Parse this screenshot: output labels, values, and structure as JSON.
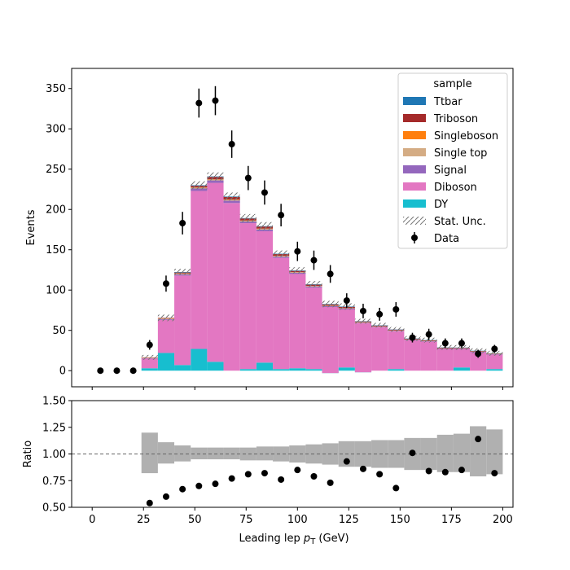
{
  "chart_data": [
    {
      "type": "bar",
      "stacked": true,
      "panel": "main",
      "ylabel": "Events",
      "xlim": [
        -10,
        205
      ],
      "ylim": [
        -20,
        375
      ],
      "yticks": [
        0,
        50,
        100,
        150,
        200,
        250,
        300,
        350
      ],
      "bin_edges": [
        24,
        32,
        40,
        48,
        56,
        64,
        72,
        80,
        88,
        96,
        104,
        112,
        120,
        128,
        136,
        144,
        152,
        160,
        168,
        176,
        184,
        192,
        200
      ],
      "series": [
        {
          "name": "DY",
          "color": "#17becf",
          "values": [
            3,
            22,
            7,
            27,
            11,
            0,
            2,
            10,
            2,
            3,
            2,
            -3,
            4,
            -2,
            0,
            2,
            0,
            0,
            0,
            4,
            0,
            2
          ]
        },
        {
          "name": "Diboson",
          "color": "#e377c2",
          "values": [
            12,
            41,
            111,
            196,
            222,
            208,
            181,
            163,
            138,
            117,
            101,
            82,
            72,
            61,
            54,
            47,
            38,
            36,
            27,
            23,
            23,
            18
          ]
        },
        {
          "name": "Signal",
          "color": "#9467bd",
          "values": [
            0.5,
            1,
            1.5,
            3,
            3,
            3,
            2,
            2,
            1.5,
            1.5,
            1.5,
            1,
            1,
            0.5,
            0.5,
            0.5,
            0.5,
            0.5,
            0.5,
            0.5,
            0.5,
            0.5
          ]
        },
        {
          "name": "Single top",
          "color": "#d4ac84",
          "values": [
            0.3,
            0.5,
            0.8,
            1,
            1,
            1,
            1,
            1,
            0.8,
            0.6,
            0.5,
            0.5,
            0.4,
            0.3,
            0.3,
            0.3,
            0.2,
            0.2,
            0.2,
            0.2,
            0.2,
            0.2
          ]
        },
        {
          "name": "Singleboson",
          "color": "#ff7f0e",
          "values": [
            0.2,
            0.3,
            0.3,
            0.4,
            0.4,
            0.4,
            0.3,
            0.3,
            0.3,
            0.2,
            0.2,
            0.2,
            0.2,
            0.2,
            0.1,
            0.1,
            0.1,
            0.1,
            0.1,
            0.1,
            0.1,
            0.1
          ]
        },
        {
          "name": "Triboson",
          "color": "#a52a2a",
          "values": [
            0.5,
            0.7,
            1.2,
            2,
            3,
            3,
            2.5,
            2.5,
            2,
            1.5,
            1.5,
            1.5,
            1.5,
            1,
            1,
            1,
            0.8,
            0.8,
            0.7,
            0.6,
            0.6,
            0.5
          ]
        },
        {
          "name": "Ttbar",
          "color": "#1f77b4",
          "values": [
            0,
            0,
            0.6,
            0.6,
            0.6,
            0.6,
            0.5,
            0.5,
            0.5,
            0.5,
            0.5,
            0.5,
            0.5,
            0.4,
            0.4,
            0.3,
            0.3,
            0.3,
            0.3,
            0.3,
            0.3,
            0.3
          ]
        }
      ],
      "stat_unc_halfwidth": [
        3,
        4,
        4,
        5,
        5,
        5,
        5,
        5,
        4,
        4,
        4,
        4,
        4,
        3,
        3,
        3,
        3,
        3,
        3,
        3,
        3,
        3
      ],
      "stat_unc_label": "Stat. Unc.",
      "data": {
        "name": "Data",
        "color": "#000000",
        "x": [
          4,
          12,
          20,
          28,
          36,
          44,
          52,
          60,
          68,
          76,
          84,
          92,
          100,
          108,
          116,
          124,
          132,
          140,
          148,
          156,
          164,
          172,
          180,
          188,
          196
        ],
        "y": [
          0,
          0,
          0,
          32,
          108,
          183,
          332,
          335,
          281,
          239,
          221,
          193,
          148,
          137,
          120,
          87,
          74,
          70,
          76,
          41,
          45,
          34,
          34,
          21,
          27
        ],
        "yerr": [
          0,
          0,
          0,
          6,
          10,
          14,
          18,
          18,
          17,
          15,
          15,
          14,
          12,
          12,
          11,
          9,
          9,
          8,
          9,
          6,
          7,
          6,
          6,
          5,
          5
        ]
      },
      "legend": {
        "title": "sample",
        "position": "top-right",
        "entries": [
          "Ttbar",
          "Triboson",
          "Singleboson",
          "Single top",
          "Signal",
          "Diboson",
          "DY",
          "Stat. Unc.",
          "Data"
        ]
      }
    },
    {
      "type": "scatter",
      "panel": "ratio",
      "xlabel": "Leading lep p_T (GeV)",
      "xlabel_parts": {
        "prefix": "Leading lep ",
        "symbol": "p",
        "subscript": "T",
        "suffix": " (GeV)"
      },
      "ylabel": "Ratio",
      "xlim": [
        -10,
        205
      ],
      "ylim": [
        0.5,
        1.5
      ],
      "xticks": [
        0,
        25,
        50,
        75,
        100,
        125,
        150,
        175,
        200
      ],
      "yticks": [
        0.5,
        0.75,
        1.0,
        1.25,
        1.5
      ],
      "ytick_labels": [
        "0.50",
        "0.75",
        "1.00",
        "1.25",
        "1.50"
      ],
      "reference_line": 1.0,
      "unc_band": {
        "color": "#b0b0b0",
        "bin_edges": [
          24,
          32,
          40,
          48,
          56,
          64,
          72,
          80,
          88,
          96,
          104,
          112,
          120,
          128,
          136,
          144,
          152,
          160,
          168,
          176,
          184,
          192,
          200
        ],
        "lo": [
          0.82,
          0.91,
          0.93,
          0.95,
          0.95,
          0.95,
          0.94,
          0.94,
          0.93,
          0.92,
          0.91,
          0.9,
          0.88,
          0.88,
          0.87,
          0.87,
          0.85,
          0.85,
          0.83,
          0.83,
          0.79,
          0.81
        ],
        "hi": [
          1.2,
          1.11,
          1.08,
          1.06,
          1.06,
          1.06,
          1.06,
          1.07,
          1.07,
          1.08,
          1.09,
          1.1,
          1.12,
          1.12,
          1.13,
          1.13,
          1.15,
          1.15,
          1.18,
          1.19,
          1.26,
          1.23
        ]
      },
      "points": {
        "x": [
          28,
          36,
          44,
          52,
          60,
          68,
          76,
          84,
          92,
          100,
          108,
          116,
          124,
          132,
          140,
          148,
          156,
          164,
          172,
          180,
          188,
          196
        ],
        "y": [
          0.54,
          0.6,
          0.67,
          0.7,
          0.72,
          0.77,
          0.81,
          0.82,
          0.76,
          0.85,
          0.79,
          0.73,
          0.93,
          0.86,
          0.81,
          0.68,
          1.01,
          0.84,
          0.83,
          0.85,
          1.14,
          0.82
        ]
      }
    }
  ]
}
